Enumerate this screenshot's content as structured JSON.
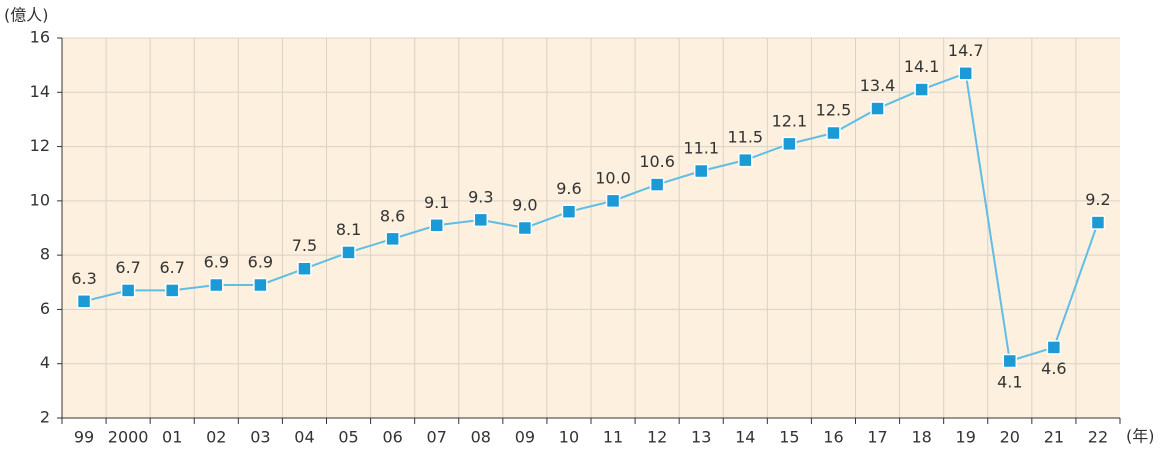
{
  "chart_data": {
    "type": "line",
    "y_label": "(億人)",
    "x_label": "(年)",
    "categories": [
      "99",
      "2000",
      "01",
      "02",
      "03",
      "04",
      "05",
      "06",
      "07",
      "08",
      "09",
      "10",
      "11",
      "12",
      "13",
      "14",
      "15",
      "16",
      "17",
      "18",
      "19",
      "20",
      "21",
      "22"
    ],
    "series": [
      {
        "color": "#1b9ad6",
        "line_color": "#5fbde6",
        "values": [
          6.3,
          6.7,
          6.7,
          6.9,
          6.9,
          7.5,
          8.1,
          8.6,
          9.1,
          9.3,
          9.0,
          9.6,
          10.0,
          10.6,
          11.1,
          11.5,
          12.1,
          12.5,
          13.4,
          14.1,
          14.7,
          4.1,
          4.6,
          9.2
        ],
        "value_labels": [
          "6.3",
          "6.7",
          "6.7",
          "6.9",
          "6.9",
          "7.5",
          "8.1",
          "8.6",
          "9.1",
          "9.3",
          "9.0",
          "9.6",
          "10.0",
          "10.6",
          "11.1",
          "11.5",
          "12.1",
          "12.5",
          "13.4",
          "14.1",
          "14.7",
          "4.1",
          "4.6",
          "9.2"
        ]
      }
    ],
    "ylim": [
      2,
      16
    ],
    "yticks": [
      2,
      4,
      6,
      8,
      10,
      12,
      14,
      16
    ],
    "grid": true
  }
}
